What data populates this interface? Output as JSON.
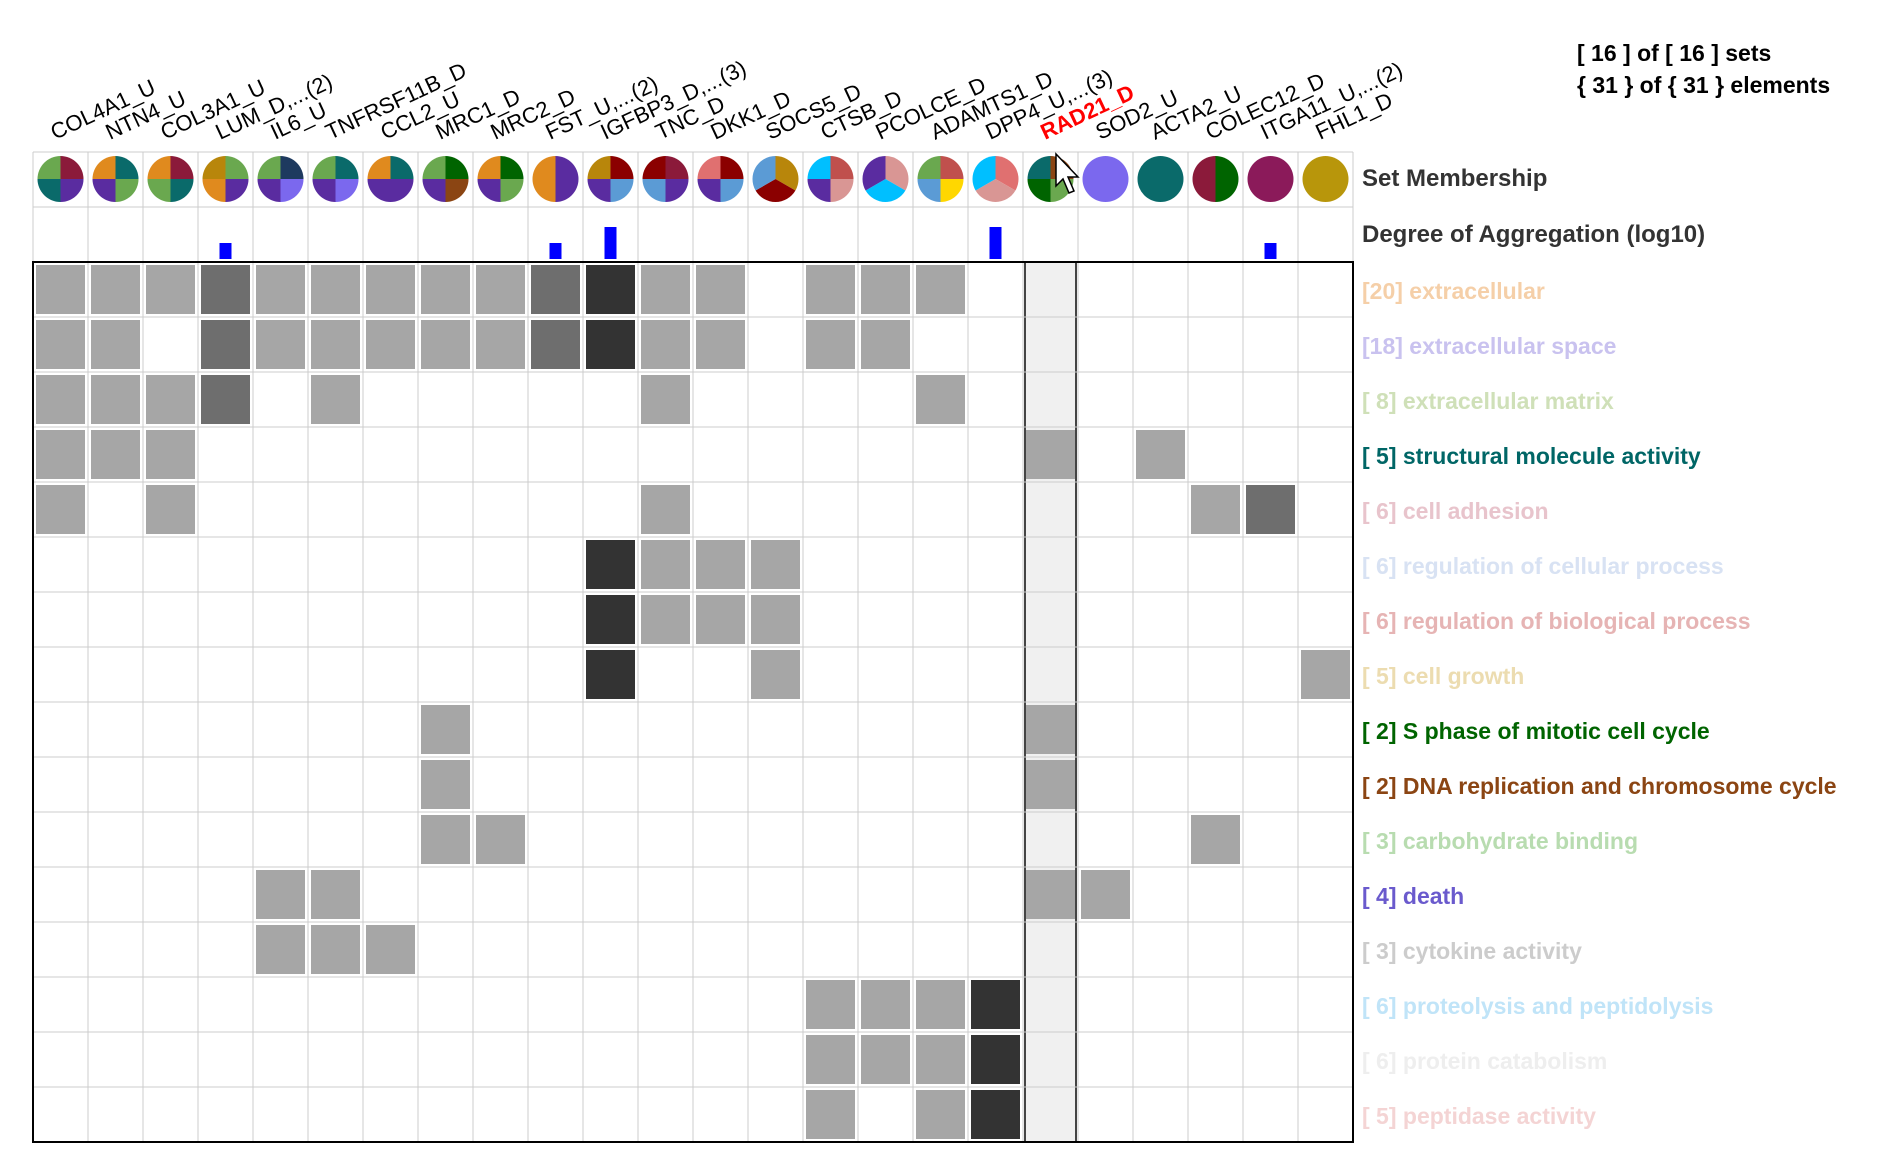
{
  "summary": {
    "sets_line": "[ 16 ] of [ 16 ] sets",
    "elements_line": "{ 31 } of { 31 } elements"
  },
  "labels": {
    "set_membership": "Set Membership",
    "degree_of_aggregation": "Degree of Aggregation (log10)"
  },
  "colors": {
    "highlight_column": "#f0f0f0",
    "highlight_label": "#ff0000",
    "bar": "#0000ff",
    "grid": "#cccccc",
    "border": "#000000",
    "shade_light": "#a6a6a6",
    "shade_mid": "#6e6e6e",
    "shade_dark": "#333333"
  },
  "highlighted_column": 18,
  "columns": [
    {
      "label": "COL4A1_U",
      "aggregation": 0,
      "pie": [
        "#8b1a3a",
        "#5a2ca0",
        "#0a6a6a",
        "#6aa84f"
      ]
    },
    {
      "label": "NTN4_U",
      "aggregation": 0,
      "pie": [
        "#0a6a6a",
        "#6aa84f",
        "#5a2ca0",
        "#e08a1e"
      ]
    },
    {
      "label": "COL3A1_U",
      "aggregation": 0,
      "pie": [
        "#8b1a3a",
        "#0a6a6a",
        "#6aa84f",
        "#e08a1e"
      ]
    },
    {
      "label": "LUM_D,...(2)",
      "aggregation": 1,
      "pie": [
        "#6aa84f",
        "#5a2ca0",
        "#e08a1e",
        "#b8860b"
      ]
    },
    {
      "label": "IL6_U",
      "aggregation": 0,
      "pie": [
        "#1e3a5f",
        "#7b68ee",
        "#5a2ca0",
        "#6aa84f"
      ]
    },
    {
      "label": "TNFRSF11B_D",
      "aggregation": 0,
      "pie": [
        "#0a6a6a",
        "#7b68ee",
        "#5a2ca0",
        "#6aa84f"
      ]
    },
    {
      "label": "CCL2_U",
      "aggregation": 0,
      "pie": [
        "#0a6a6a",
        "#5a2ca0",
        "#5a2ca0",
        "#e08a1e"
      ]
    },
    {
      "label": "MRC1_D",
      "aggregation": 0,
      "pie": [
        "#006400",
        "#8b4513",
        "#5a2ca0",
        "#6aa84f"
      ]
    },
    {
      "label": "MRC2_D",
      "aggregation": 0,
      "pie": [
        "#006400",
        "#6aa84f",
        "#5a2ca0",
        "#e08a1e"
      ]
    },
    {
      "label": "FST_U,...(2)",
      "aggregation": 1,
      "pie": [
        "#5a2ca0",
        "#e08a1e"
      ]
    },
    {
      "label": "IGFBP3_D,...(3)",
      "aggregation": 2,
      "pie": [
        "#8b0000",
        "#5b9bd5",
        "#5a2ca0",
        "#b8860b"
      ]
    },
    {
      "label": "TNC_D",
      "aggregation": 0,
      "pie": [
        "#8b1a3a",
        "#5a2ca0",
        "#5b9bd5",
        "#8b0000"
      ]
    },
    {
      "label": "DKK1_D",
      "aggregation": 0,
      "pie": [
        "#8b0000",
        "#5b9bd5",
        "#5a2ca0",
        "#e07070"
      ]
    },
    {
      "label": "SOCS5_D",
      "aggregation": 0,
      "pie": [
        "#b8860b",
        "#8b0000",
        "#5b9bd5"
      ]
    },
    {
      "label": "CTSB_D",
      "aggregation": 0,
      "pie": [
        "#c0504d",
        "#d99694",
        "#5a2ca0",
        "#00bfff"
      ]
    },
    {
      "label": "PCOLCE_D",
      "aggregation": 0,
      "pie": [
        "#d99694",
        "#00bfff",
        "#5a2ca0"
      ]
    },
    {
      "label": "ADAMTS1_D",
      "aggregation": 0,
      "pie": [
        "#c0504d",
        "#ffd700",
        "#5b9bd5",
        "#6aa84f"
      ]
    },
    {
      "label": "DPP4_U,...(3)",
      "aggregation": 2,
      "pie": [
        "#e07070",
        "#d99694",
        "#00bfff"
      ]
    },
    {
      "label": "RAD21_D",
      "aggregation": 0,
      "pie": [
        "#8b4513",
        "#6aa84f",
        "#006400",
        "#0a6a6a"
      ]
    },
    {
      "label": "SOD2_U",
      "aggregation": 0,
      "pie": [
        "#7b68ee"
      ]
    },
    {
      "label": "ACTA2_U",
      "aggregation": 0,
      "pie": [
        "#0a6a6a"
      ]
    },
    {
      "label": "COLEC12_D",
      "aggregation": 0,
      "pie": [
        "#006400",
        "#8b1a3a"
      ]
    },
    {
      "label": "ITGA11_U,...(2)",
      "aggregation": 1,
      "pie": [
        "#8b1a5a"
      ]
    },
    {
      "label": "FHL1_D",
      "aggregation": 0,
      "pie": [
        "#b8960b"
      ]
    }
  ],
  "sets": [
    {
      "label": "[20] extracellular",
      "color": "#f5cfa8",
      "cells": [
        [
          0,
          1
        ],
        [
          1,
          1
        ],
        [
          2,
          1
        ],
        [
          3,
          2
        ],
        [
          4,
          1
        ],
        [
          5,
          1
        ],
        [
          6,
          1
        ],
        [
          7,
          1
        ],
        [
          8,
          1
        ],
        [
          9,
          2
        ],
        [
          10,
          3
        ],
        [
          11,
          1
        ],
        [
          12,
          1
        ],
        [
          14,
          1
        ],
        [
          15,
          1
        ],
        [
          16,
          1
        ]
      ]
    },
    {
      "label": "[18] extracellular space",
      "color": "#c9c2ef",
      "cells": [
        [
          0,
          1
        ],
        [
          1,
          1
        ],
        [
          3,
          2
        ],
        [
          4,
          1
        ],
        [
          5,
          1
        ],
        [
          6,
          1
        ],
        [
          7,
          1
        ],
        [
          8,
          1
        ],
        [
          9,
          2
        ],
        [
          10,
          3
        ],
        [
          11,
          1
        ],
        [
          12,
          1
        ],
        [
          14,
          1
        ],
        [
          15,
          1
        ]
      ]
    },
    {
      "label": "[ 8] extracellular matrix",
      "color": "#cfe0b8",
      "cells": [
        [
          0,
          1
        ],
        [
          1,
          1
        ],
        [
          2,
          1
        ],
        [
          3,
          2
        ],
        [
          5,
          1
        ],
        [
          11,
          1
        ],
        [
          16,
          1
        ]
      ]
    },
    {
      "label": "[ 5] structural molecule activity",
      "color": "#006666",
      "cells": [
        [
          0,
          1
        ],
        [
          1,
          1
        ],
        [
          2,
          1
        ],
        [
          18,
          1
        ],
        [
          20,
          1
        ]
      ]
    },
    {
      "label": "[ 6] cell adhesion",
      "color": "#e8c4cc",
      "cells": [
        [
          0,
          1
        ],
        [
          2,
          1
        ],
        [
          11,
          1
        ],
        [
          21,
          1
        ],
        [
          22,
          2
        ]
      ]
    },
    {
      "label": "[ 6] regulation of cellular process",
      "color": "#d8e2f3",
      "cells": [
        [
          10,
          3
        ],
        [
          11,
          1
        ],
        [
          12,
          1
        ],
        [
          13,
          1
        ]
      ]
    },
    {
      "label": "[ 6] regulation of biological process",
      "color": "#e6b4b4",
      "cells": [
        [
          10,
          3
        ],
        [
          11,
          1
        ],
        [
          12,
          1
        ],
        [
          13,
          1
        ]
      ]
    },
    {
      "label": "[ 5] cell growth",
      "color": "#ecdcb0",
      "cells": [
        [
          10,
          3
        ],
        [
          13,
          1
        ],
        [
          23,
          1
        ]
      ]
    },
    {
      "label": "[ 2] S phase of mitotic cell cycle",
      "color": "#006400",
      "cells": [
        [
          7,
          1
        ],
        [
          18,
          1
        ]
      ]
    },
    {
      "label": "[ 2] DNA replication and chromosome cycle",
      "color": "#8b4513",
      "cells": [
        [
          7,
          1
        ],
        [
          18,
          1
        ]
      ]
    },
    {
      "label": "[ 3] carbohydrate binding",
      "color": "#b8dcb0",
      "cells": [
        [
          7,
          1
        ],
        [
          8,
          1
        ],
        [
          21,
          1
        ]
      ]
    },
    {
      "label": "[ 4] death",
      "color": "#6a5acd",
      "cells": [
        [
          4,
          1
        ],
        [
          5,
          1
        ],
        [
          18,
          1
        ],
        [
          19,
          1
        ]
      ]
    },
    {
      "label": "[ 3] cytokine activity",
      "color": "#cccccc",
      "cells": [
        [
          4,
          1
        ],
        [
          5,
          1
        ],
        [
          6,
          1
        ]
      ]
    },
    {
      "label": "[ 6] proteolysis and peptidolysis",
      "color": "#c0e4f8",
      "cells": [
        [
          14,
          1
        ],
        [
          15,
          1
        ],
        [
          16,
          1
        ],
        [
          17,
          3
        ]
      ]
    },
    {
      "label": "[ 6] protein catabolism",
      "color": "#eeeeee",
      "cells": [
        [
          14,
          1
        ],
        [
          15,
          1
        ],
        [
          16,
          1
        ],
        [
          17,
          3
        ]
      ]
    },
    {
      "label": "[ 5] peptidase activity",
      "color": "#f4d4d4",
      "cells": [
        [
          14,
          1
        ],
        [
          16,
          1
        ],
        [
          17,
          3
        ]
      ]
    }
  ]
}
